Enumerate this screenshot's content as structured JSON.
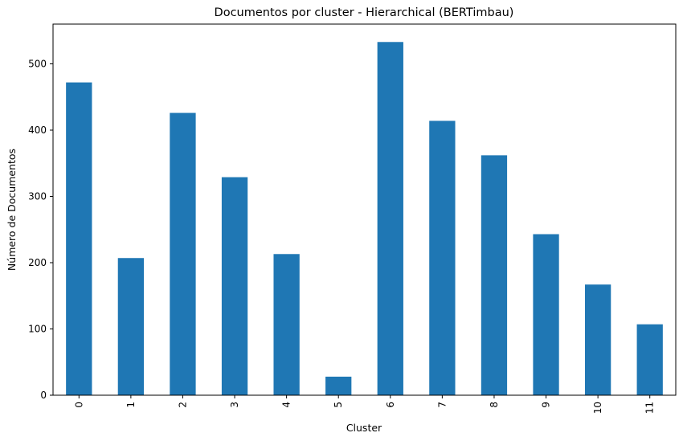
{
  "chart_data": {
    "type": "bar",
    "title": "Documentos por cluster - Hierarchical (BERTimbau)",
    "xlabel": "Cluster",
    "ylabel": "Número de Documentos",
    "categories": [
      "0",
      "1",
      "2",
      "3",
      "4",
      "5",
      "6",
      "7",
      "8",
      "9",
      "10",
      "11"
    ],
    "values": [
      472,
      207,
      426,
      329,
      213,
      28,
      533,
      414,
      362,
      243,
      167,
      107
    ],
    "ylim": [
      0,
      560
    ],
    "yticks": [
      0,
      100,
      200,
      300,
      400,
      500
    ],
    "yticks_labels": [
      "0",
      "100",
      "200",
      "300",
      "400",
      "500"
    ],
    "bar_color": "#1f77b4",
    "grid": false,
    "legend": "none",
    "xtick_rotation": "vertical"
  }
}
